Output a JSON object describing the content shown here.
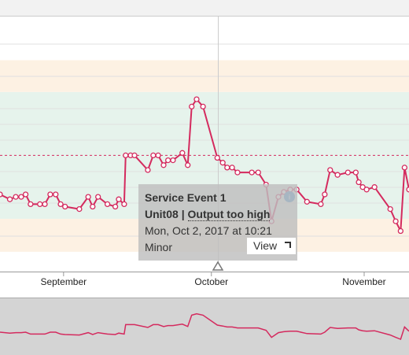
{
  "chart_data": {
    "type": "line",
    "x": [
      -12.9,
      -10.9,
      -9.7,
      -8.6,
      -7.7,
      -6.7,
      -4.8,
      -3.8,
      -2.7,
      -1.6,
      -0.6,
      0.3,
      3.2,
      5.0,
      5.9,
      7.0,
      8.9,
      10.5,
      11.2,
      12.3,
      12.6,
      13.6,
      14.4,
      17.1,
      18.2,
      19.2,
      20.3,
      21.2,
      22.2,
      24.1,
      25.2,
      26.0,
      27.0,
      28.3,
      31.2,
      32.3,
      33.2,
      34.2,
      35.3,
      38.2,
      39.5,
      41.1,
      42.2,
      43.6,
      44.7,
      46.0,
      47.3,
      49.4,
      52.2,
      53.0,
      54.1,
      55.6,
      57.7,
      59.3,
      59.9,
      60.7,
      61.5,
      63.1,
      66.3,
      67.4,
      68.4,
      69.2,
      70.1
    ],
    "series": [
      {
        "name": "Output",
        "color": "#d42a5e",
        "values": [
          30,
          28,
          29,
          29,
          30,
          26,
          26,
          26,
          30,
          30,
          26,
          25,
          24,
          29,
          25,
          29,
          26,
          25,
          28,
          26,
          46,
          46,
          46,
          40,
          46,
          46,
          42,
          44,
          44,
          47,
          42,
          66,
          69,
          66,
          45,
          43,
          41,
          41,
          39,
          39,
          39,
          34,
          19,
          29,
          31,
          32,
          32,
          27,
          26,
          30,
          40,
          38,
          39,
          39,
          35,
          33,
          32,
          33,
          24,
          19,
          15,
          41,
          32
        ]
      }
    ],
    "xlim": [
      -12.9,
      70.1
    ],
    "xticks": [
      {
        "value": 0,
        "label": "September"
      },
      {
        "value": 30,
        "label": "October"
      },
      {
        "value": 61,
        "label": "November"
      }
    ],
    "ylim": [
      0,
      100
    ],
    "bands": [
      {
        "from": 6.5,
        "to": 20,
        "color": "#fdf1e3"
      },
      {
        "from": 20,
        "to": 72,
        "color": "#e6f3ec"
      },
      {
        "from": 72,
        "to": 85,
        "color": "#fdf1e3"
      }
    ],
    "threshold": 46
  },
  "tooltip": {
    "title": "Service Event 1",
    "unit": "Unit08",
    "separator": "|",
    "event": "Output too high",
    "time": "Mon, Oct 2, 2017 at 10:21",
    "severity": "Minor",
    "button": "View"
  }
}
